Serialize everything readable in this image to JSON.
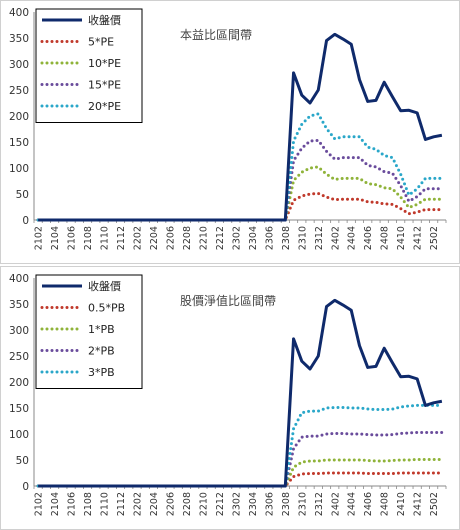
{
  "chart_data": [
    {
      "type": "line",
      "title": "本益比區間帶",
      "ylim": [
        0,
        400
      ],
      "y_ticks": [
        0,
        50,
        100,
        150,
        200,
        250,
        300,
        350,
        400
      ],
      "x_tick_labels": [
        "2102",
        "2104",
        "2106",
        "2108",
        "2110",
        "2112",
        "2202",
        "2204",
        "2206",
        "2208",
        "2210",
        "2212",
        "2302",
        "2304",
        "2306",
        "2308",
        "2310",
        "2312",
        "2402",
        "2404",
        "2406",
        "2408",
        "2410",
        "2412",
        "2502"
      ],
      "x_count": 50,
      "grid": false,
      "legend_placement": "top-left",
      "series": [
        {
          "name": "收盤價",
          "color": "#0f2a6b",
          "style": "solid",
          "values": [
            0,
            0,
            0,
            0,
            0,
            0,
            0,
            0,
            0,
            0,
            0,
            0,
            0,
            0,
            0,
            0,
            0,
            0,
            0,
            0,
            0,
            0,
            0,
            0,
            0,
            0,
            0,
            0,
            0,
            0,
            0,
            283,
            240,
            225,
            250,
            345,
            357,
            348,
            338,
            270,
            228,
            230,
            265,
            237,
            210,
            211,
            206,
            155,
            160,
            163
          ]
        },
        {
          "name": "5*PE",
          "color": "#c0392b",
          "style": "dotted",
          "values": [
            0,
            0,
            0,
            0,
            0,
            0,
            0,
            0,
            0,
            0,
            0,
            0,
            0,
            0,
            0,
            0,
            0,
            0,
            0,
            0,
            0,
            0,
            0,
            0,
            0,
            0,
            0,
            0,
            0,
            0,
            0,
            38,
            46,
            50,
            51,
            44,
            39,
            40,
            40,
            40,
            35,
            34,
            31,
            30,
            22,
            12,
            15,
            20,
            20,
            20
          ]
        },
        {
          "name": "10*PE",
          "color": "#8fb339",
          "style": "dotted",
          "values": [
            0,
            0,
            0,
            0,
            0,
            0,
            0,
            0,
            0,
            0,
            0,
            0,
            0,
            0,
            0,
            0,
            0,
            0,
            0,
            0,
            0,
            0,
            0,
            0,
            0,
            0,
            0,
            0,
            0,
            0,
            0,
            76,
            92,
            100,
            102,
            88,
            78,
            80,
            80,
            80,
            70,
            68,
            62,
            60,
            44,
            24,
            30,
            40,
            40,
            40
          ]
        },
        {
          "name": "15*PE",
          "color": "#6a4c9c",
          "style": "dotted",
          "values": [
            0,
            0,
            0,
            0,
            0,
            0,
            0,
            0,
            0,
            0,
            0,
            0,
            0,
            0,
            0,
            0,
            0,
            0,
            0,
            0,
            0,
            0,
            0,
            0,
            0,
            0,
            0,
            0,
            0,
            0,
            0,
            114,
            138,
            152,
            153,
            132,
            117,
            120,
            120,
            120,
            105,
            102,
            93,
            90,
            66,
            36,
            45,
            60,
            60,
            60
          ]
        },
        {
          "name": "20*PE",
          "color": "#2aa7c9",
          "style": "dotted",
          "values": [
            0,
            0,
            0,
            0,
            0,
            0,
            0,
            0,
            0,
            0,
            0,
            0,
            0,
            0,
            0,
            0,
            0,
            0,
            0,
            0,
            0,
            0,
            0,
            0,
            0,
            0,
            0,
            0,
            0,
            0,
            0,
            152,
            184,
            200,
            204,
            176,
            156,
            160,
            160,
            160,
            140,
            136,
            124,
            120,
            88,
            48,
            60,
            80,
            80,
            80
          ]
        }
      ]
    },
    {
      "type": "line",
      "title": "股價淨值比區間帶",
      "ylim": [
        0,
        400
      ],
      "y_ticks": [
        0,
        50,
        100,
        150,
        200,
        250,
        300,
        350,
        400
      ],
      "x_tick_labels": [
        "2102",
        "2104",
        "2106",
        "2108",
        "2110",
        "2112",
        "2202",
        "2204",
        "2206",
        "2208",
        "2210",
        "2212",
        "2302",
        "2304",
        "2306",
        "2308",
        "2310",
        "2312",
        "2402",
        "2404",
        "2406",
        "2408",
        "2410",
        "2412",
        "2502"
      ],
      "x_count": 50,
      "grid": false,
      "legend_placement": "top-left",
      "series": [
        {
          "name": "收盤價",
          "color": "#0f2a6b",
          "style": "solid",
          "values": [
            0,
            0,
            0,
            0,
            0,
            0,
            0,
            0,
            0,
            0,
            0,
            0,
            0,
            0,
            0,
            0,
            0,
            0,
            0,
            0,
            0,
            0,
            0,
            0,
            0,
            0,
            0,
            0,
            0,
            0,
            0,
            283,
            240,
            225,
            250,
            345,
            357,
            348,
            338,
            270,
            228,
            230,
            265,
            237,
            210,
            211,
            206,
            155,
            160,
            163
          ]
        },
        {
          "name": "0.5*PB",
          "color": "#c0392b",
          "style": "dotted",
          "values": [
            0,
            0,
            0,
            0,
            0,
            0,
            0,
            0,
            0,
            0,
            0,
            0,
            0,
            0,
            0,
            0,
            0,
            0,
            0,
            0,
            0,
            0,
            0,
            0,
            0,
            0,
            0,
            0,
            0,
            0,
            0,
            18,
            23,
            24,
            24,
            25,
            25,
            25,
            25,
            25,
            24,
            24,
            24,
            24,
            25,
            25,
            25,
            25,
            25,
            25
          ]
        },
        {
          "name": "1*PB",
          "color": "#8fb339",
          "style": "dotted",
          "values": [
            0,
            0,
            0,
            0,
            0,
            0,
            0,
            0,
            0,
            0,
            0,
            0,
            0,
            0,
            0,
            0,
            0,
            0,
            0,
            0,
            0,
            0,
            0,
            0,
            0,
            0,
            0,
            0,
            0,
            0,
            0,
            36,
            46,
            48,
            48,
            50,
            50,
            50,
            50,
            50,
            49,
            48,
            48,
            49,
            50,
            50,
            51,
            51,
            51,
            51
          ]
        },
        {
          "name": "2*PB",
          "color": "#6a4c9c",
          "style": "dotted",
          "values": [
            0,
            0,
            0,
            0,
            0,
            0,
            0,
            0,
            0,
            0,
            0,
            0,
            0,
            0,
            0,
            0,
            0,
            0,
            0,
            0,
            0,
            0,
            0,
            0,
            0,
            0,
            0,
            0,
            0,
            0,
            0,
            72,
            94,
            96,
            96,
            100,
            101,
            101,
            100,
            100,
            99,
            98,
            98,
            99,
            101,
            102,
            103,
            103,
            103,
            103
          ]
        },
        {
          "name": "3*PB",
          "color": "#2aa7c9",
          "style": "dotted",
          "values": [
            0,
            0,
            0,
            0,
            0,
            0,
            0,
            0,
            0,
            0,
            0,
            0,
            0,
            0,
            0,
            0,
            0,
            0,
            0,
            0,
            0,
            0,
            0,
            0,
            0,
            0,
            0,
            0,
            0,
            0,
            0,
            110,
            141,
            144,
            144,
            150,
            151,
            151,
            150,
            150,
            148,
            147,
            147,
            148,
            152,
            154,
            155,
            155,
            155,
            155
          ]
        }
      ]
    }
  ]
}
